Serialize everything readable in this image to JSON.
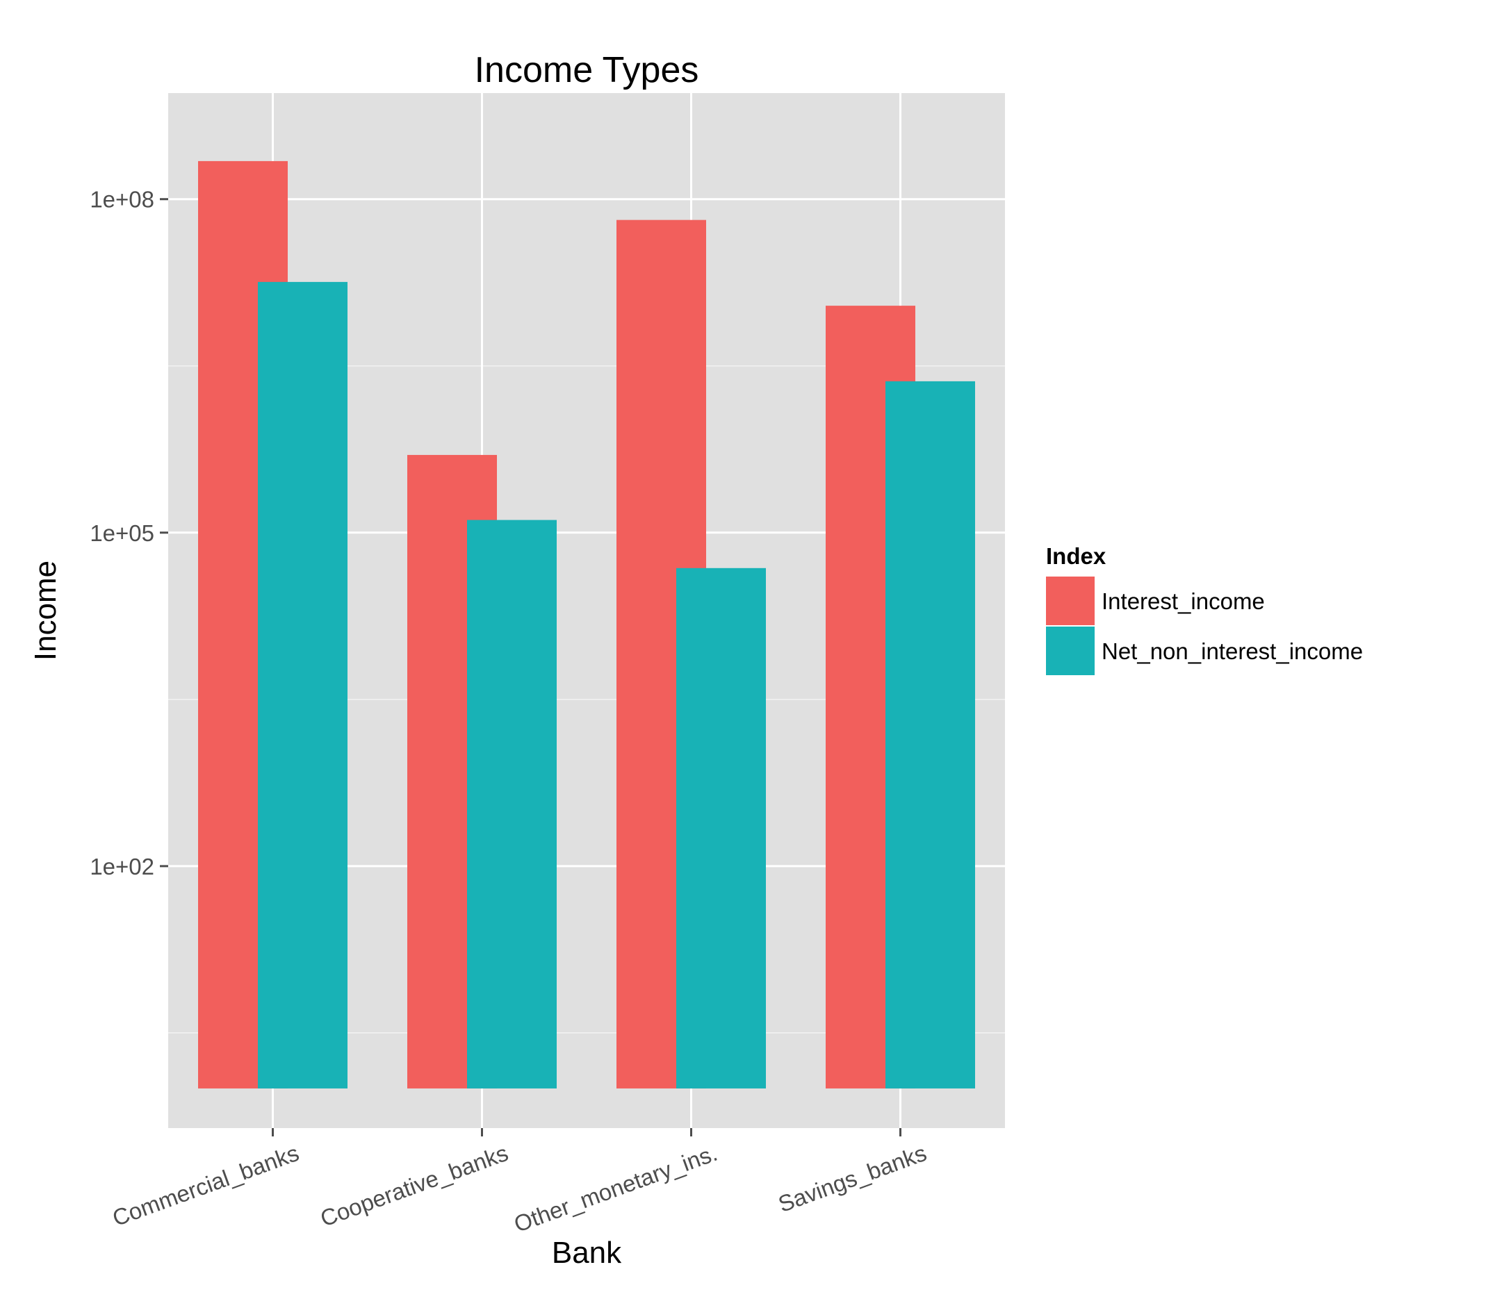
{
  "chart_data": {
    "type": "bar",
    "title": "Income Types",
    "xlabel": "Bank",
    "ylabel": "Income",
    "y_scale": "log10",
    "ylim": [
      0.44,
      900000000
    ],
    "bar_base": 1,
    "y_ticks": [
      {
        "value": 100,
        "label": "1e+02"
      },
      {
        "value": 100000,
        "label": "1e+05"
      },
      {
        "value": 100000000,
        "label": "1e+08"
      }
    ],
    "categories": [
      "Commercial_banks",
      "Cooperative_banks",
      "Other_monetary_ins.",
      "Savings_banks"
    ],
    "series": [
      {
        "name": "Interest_income",
        "color": "#F25F5C",
        "values": [
          220000000,
          500000,
          65000000,
          11000000
        ]
      },
      {
        "name": "Net_non_interest_income",
        "color": "#18B2B6",
        "values": [
          18000000,
          130000,
          48000,
          2300000
        ]
      }
    ],
    "legend": {
      "title": "Index",
      "position": "right"
    },
    "grid": true,
    "panel_background": "#E0E0E0"
  }
}
